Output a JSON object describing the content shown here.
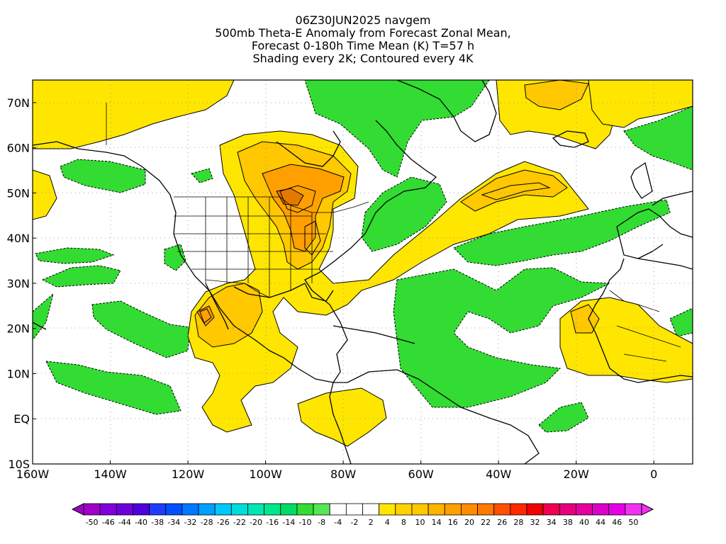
{
  "title": {
    "lines": [
      "06Z30JUN2025 navgem",
      "500mb Theta-E Anomaly from Forecast Zonal Mean,",
      "Forecast 0-180h Time Mean (K) T=57 h",
      "Shading every 2K; Contoured every 4K"
    ]
  },
  "map": {
    "lon_range": [
      -160,
      10
    ],
    "lat_range": [
      -10,
      75
    ],
    "lat_ticks": [
      {
        "value": 70,
        "label": "70N"
      },
      {
        "value": 60,
        "label": "60N"
      },
      {
        "value": 50,
        "label": "50N"
      },
      {
        "value": 40,
        "label": "40N"
      },
      {
        "value": 30,
        "label": "30N"
      },
      {
        "value": 20,
        "label": "20N"
      },
      {
        "value": 10,
        "label": "10N"
      },
      {
        "value": 0,
        "label": "EQ"
      },
      {
        "value": -10,
        "label": "10S"
      }
    ],
    "lon_ticks": [
      {
        "value": -160,
        "label": "160W"
      },
      {
        "value": -140,
        "label": "140W"
      },
      {
        "value": -120,
        "label": "120W"
      },
      {
        "value": -100,
        "label": "100W"
      },
      {
        "value": -80,
        "label": "80W"
      },
      {
        "value": -60,
        "label": "60W"
      },
      {
        "value": -40,
        "label": "40W"
      },
      {
        "value": -20,
        "label": "20W"
      },
      {
        "value": 0,
        "label": "0"
      }
    ],
    "grid": "dotted",
    "colors": {
      "yellow": "#ffe600",
      "gold": "#ffc800",
      "orange": "#ffa000",
      "dark_orange": "#e67800",
      "green": "#32dc32",
      "light_green": "#55e655",
      "teal_green": "#20c870",
      "coast": "#000000"
    }
  },
  "colorbar": {
    "labels": [
      "-50",
      "-46",
      "-44",
      "-40",
      "-38",
      "-34",
      "-32",
      "-28",
      "-26",
      "-22",
      "-20",
      "-16",
      "-14",
      "-10",
      "-8",
      "-4",
      "-2",
      "2",
      "4",
      "8",
      "10",
      "14",
      "16",
      "20",
      "22",
      "26",
      "28",
      "32",
      "34",
      "38",
      "40",
      "44",
      "46",
      "50"
    ],
    "colors": [
      "#a000c8",
      "#8200dc",
      "#6e00dc",
      "#5000dc",
      "#1e3cff",
      "#0050ff",
      "#0078ff",
      "#00a0ff",
      "#00c8ff",
      "#00dcdc",
      "#00e6b4",
      "#00e68c",
      "#00dc64",
      "#32dc32",
      "#55e655",
      "#ffffff",
      "#ffffff",
      "#ffffff",
      "#ffe600",
      "#ffd200",
      "#ffc800",
      "#ffb400",
      "#ffa000",
      "#ff8c00",
      "#ff7800",
      "#ff5000",
      "#ff2800",
      "#f00000",
      "#f00050",
      "#e6007c",
      "#e600a0",
      "#dc00c8",
      "#e600e6",
      "#f032f0"
    ]
  }
}
